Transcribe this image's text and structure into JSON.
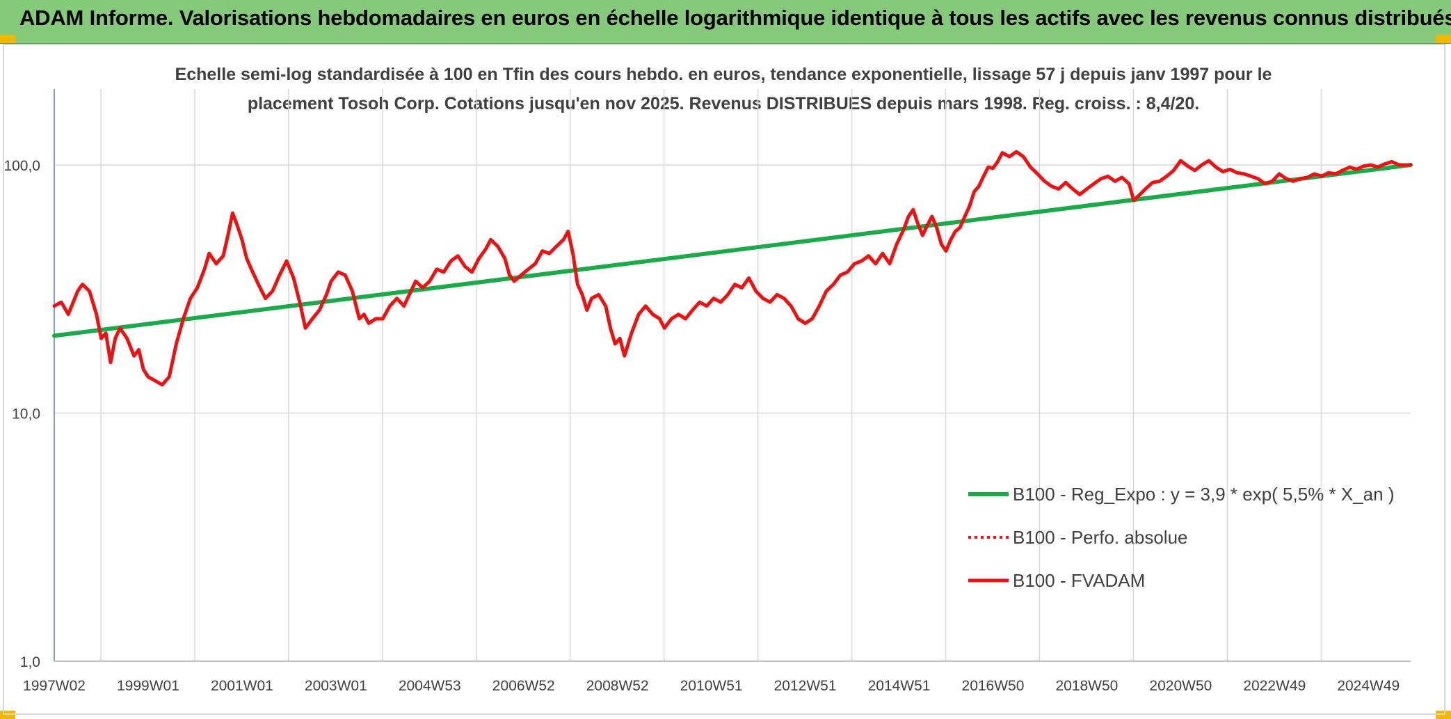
{
  "header": {
    "title": "ADAM Informe. Valorisations hebdomadaires en euros en échelle logarithmique identique à tous les actifs avec les revenus connus distribués"
  },
  "colors": {
    "header_bg": "#85c97a",
    "trend": "#1aaa4a",
    "series": "#ee1111",
    "grid": "#d9d9d9",
    "text": "#404040"
  },
  "chart_data": {
    "type": "line",
    "title_lines": [
      "Echelle semi-log standardisée à 100 en Tfin des cours hebdo. en euros, tendance exponentielle, lissage 57 j depuis janv 1997 pour le",
      "placement Tosoh Corp. Cotations jusqu'en nov 2025. Revenus DISTRIBUES depuis mars 1998. Reg. croiss. : 8,4/20."
    ],
    "y_scale": "log",
    "ylim": [
      1,
      100
    ],
    "y_ticks": [
      {
        "value": 1,
        "label": "1,0"
      },
      {
        "value": 10,
        "label": "10,0"
      },
      {
        "value": 100,
        "label": "100,0"
      }
    ],
    "xlim": [
      1997.0,
      2025.9
    ],
    "x_ticks": [
      {
        "x": 1997.0,
        "label": "1997W02"
      },
      {
        "x": 1999.0,
        "label": "1999W01"
      },
      {
        "x": 2001.0,
        "label": "2001W01"
      },
      {
        "x": 2003.0,
        "label": "2003W01"
      },
      {
        "x": 2005.0,
        "label": "2004W53"
      },
      {
        "x": 2007.0,
        "label": "2006W52"
      },
      {
        "x": 2009.0,
        "label": "2008W52"
      },
      {
        "x": 2011.0,
        "label": "2010W51"
      },
      {
        "x": 2013.0,
        "label": "2012W51"
      },
      {
        "x": 2015.0,
        "label": "2014W51"
      },
      {
        "x": 2017.0,
        "label": "2016W50"
      },
      {
        "x": 2019.0,
        "label": "2018W50"
      },
      {
        "x": 2021.0,
        "label": "2020W50"
      },
      {
        "x": 2023.0,
        "label": "2022W49"
      },
      {
        "x": 2025.0,
        "label": "2024W49"
      }
    ],
    "legend_position": "right",
    "series": [
      {
        "name": "B100 - Reg_Expo : y = 3,9 * exp( 5,5% *  X_an )",
        "style": "solid-green",
        "points": [
          [
            1997.0,
            20.5
          ],
          [
            2025.9,
            100.0
          ]
        ]
      },
      {
        "name": "B100 - Perfo. absolue",
        "style": "dotted-red",
        "points": []
      },
      {
        "name": "B100 - FVADAM",
        "style": "solid-red",
        "points": [
          [
            1997.0,
            27
          ],
          [
            1997.15,
            28
          ],
          [
            1997.3,
            25
          ],
          [
            1997.5,
            31
          ],
          [
            1997.6,
            33
          ],
          [
            1997.75,
            31
          ],
          [
            1997.9,
            25
          ],
          [
            1998.0,
            20
          ],
          [
            1998.1,
            21
          ],
          [
            1998.2,
            16
          ],
          [
            1998.3,
            20
          ],
          [
            1998.4,
            22
          ],
          [
            1998.55,
            20
          ],
          [
            1998.7,
            17
          ],
          [
            1998.8,
            18
          ],
          [
            1998.9,
            15
          ],
          [
            1999.0,
            14
          ],
          [
            1999.15,
            13.5
          ],
          [
            1999.3,
            13
          ],
          [
            1999.45,
            14
          ],
          [
            1999.6,
            19
          ],
          [
            1999.75,
            24
          ],
          [
            1999.9,
            29
          ],
          [
            2000.05,
            32
          ],
          [
            2000.2,
            38
          ],
          [
            2000.3,
            44
          ],
          [
            2000.45,
            40
          ],
          [
            2000.6,
            43
          ],
          [
            2000.7,
            52
          ],
          [
            2000.8,
            64
          ],
          [
            2000.9,
            57
          ],
          [
            2001.0,
            50
          ],
          [
            2001.1,
            42
          ],
          [
            2001.2,
            38
          ],
          [
            2001.35,
            33
          ],
          [
            2001.5,
            29
          ],
          [
            2001.65,
            31
          ],
          [
            2001.8,
            36
          ],
          [
            2001.95,
            41
          ],
          [
            2002.1,
            35
          ],
          [
            2002.25,
            27
          ],
          [
            2002.35,
            22
          ],
          [
            2002.5,
            24
          ],
          [
            2002.65,
            26
          ],
          [
            2002.8,
            30
          ],
          [
            2002.9,
            34
          ],
          [
            2003.05,
            37
          ],
          [
            2003.2,
            36
          ],
          [
            2003.35,
            31
          ],
          [
            2003.5,
            24
          ],
          [
            2003.6,
            25
          ],
          [
            2003.7,
            23
          ],
          [
            2003.85,
            24
          ],
          [
            2004.0,
            24
          ],
          [
            2004.15,
            27
          ],
          [
            2004.3,
            29
          ],
          [
            2004.45,
            27
          ],
          [
            2004.6,
            31
          ],
          [
            2004.7,
            34
          ],
          [
            2004.85,
            32
          ],
          [
            2005.0,
            34
          ],
          [
            2005.15,
            38
          ],
          [
            2005.3,
            37
          ],
          [
            2005.45,
            41
          ],
          [
            2005.6,
            43
          ],
          [
            2005.75,
            39
          ],
          [
            2005.9,
            37
          ],
          [
            2006.05,
            42
          ],
          [
            2006.2,
            46
          ],
          [
            2006.3,
            50
          ],
          [
            2006.45,
            47
          ],
          [
            2006.6,
            42
          ],
          [
            2006.7,
            36
          ],
          [
            2006.8,
            34
          ],
          [
            2006.95,
            36
          ],
          [
            2007.1,
            38
          ],
          [
            2007.25,
            40
          ],
          [
            2007.4,
            45
          ],
          [
            2007.55,
            44
          ],
          [
            2007.7,
            47
          ],
          [
            2007.85,
            50
          ],
          [
            2007.95,
            54
          ],
          [
            2008.05,
            44
          ],
          [
            2008.15,
            33
          ],
          [
            2008.25,
            30
          ],
          [
            2008.35,
            26
          ],
          [
            2008.45,
            29
          ],
          [
            2008.6,
            30
          ],
          [
            2008.75,
            27
          ],
          [
            2008.85,
            22
          ],
          [
            2008.95,
            19
          ],
          [
            2009.05,
            20
          ],
          [
            2009.15,
            17
          ],
          [
            2009.3,
            21
          ],
          [
            2009.45,
            25
          ],
          [
            2009.6,
            27
          ],
          [
            2009.75,
            25
          ],
          [
            2009.9,
            24
          ],
          [
            2010.0,
            22
          ],
          [
            2010.15,
            24
          ],
          [
            2010.3,
            25
          ],
          [
            2010.45,
            24
          ],
          [
            2010.6,
            26
          ],
          [
            2010.75,
            28
          ],
          [
            2010.9,
            27
          ],
          [
            2011.05,
            29
          ],
          [
            2011.2,
            28
          ],
          [
            2011.35,
            30
          ],
          [
            2011.5,
            33
          ],
          [
            2011.65,
            32
          ],
          [
            2011.8,
            35
          ],
          [
            2011.95,
            31
          ],
          [
            2012.1,
            29
          ],
          [
            2012.25,
            28
          ],
          [
            2012.4,
            30
          ],
          [
            2012.55,
            29
          ],
          [
            2012.7,
            27
          ],
          [
            2012.85,
            24
          ],
          [
            2013.0,
            23
          ],
          [
            2013.15,
            24
          ],
          [
            2013.3,
            27
          ],
          [
            2013.45,
            31
          ],
          [
            2013.6,
            33
          ],
          [
            2013.75,
            36
          ],
          [
            2013.9,
            37
          ],
          [
            2014.05,
            40
          ],
          [
            2014.2,
            41
          ],
          [
            2014.35,
            43
          ],
          [
            2014.5,
            40
          ],
          [
            2014.65,
            44
          ],
          [
            2014.8,
            40
          ],
          [
            2014.95,
            48
          ],
          [
            2015.1,
            55
          ],
          [
            2015.2,
            62
          ],
          [
            2015.3,
            66
          ],
          [
            2015.4,
            58
          ],
          [
            2015.5,
            52
          ],
          [
            2015.6,
            57
          ],
          [
            2015.7,
            62
          ],
          [
            2015.8,
            56
          ],
          [
            2015.9,
            48
          ],
          [
            2016.0,
            45
          ],
          [
            2016.1,
            50
          ],
          [
            2016.2,
            54
          ],
          [
            2016.3,
            56
          ],
          [
            2016.4,
            62
          ],
          [
            2016.5,
            68
          ],
          [
            2016.6,
            78
          ],
          [
            2016.7,
            82
          ],
          [
            2016.8,
            90
          ],
          [
            2016.9,
            98
          ],
          [
            2017.0,
            97
          ],
          [
            2017.1,
            103
          ],
          [
            2017.2,
            112
          ],
          [
            2017.35,
            108
          ],
          [
            2017.5,
            113
          ],
          [
            2017.65,
            108
          ],
          [
            2017.8,
            98
          ],
          [
            2017.95,
            92
          ],
          [
            2018.1,
            86
          ],
          [
            2018.25,
            82
          ],
          [
            2018.4,
            80
          ],
          [
            2018.55,
            85
          ],
          [
            2018.7,
            80
          ],
          [
            2018.85,
            76
          ],
          [
            2019.0,
            80
          ],
          [
            2019.15,
            84
          ],
          [
            2019.3,
            88
          ],
          [
            2019.45,
            90
          ],
          [
            2019.6,
            86
          ],
          [
            2019.75,
            89
          ],
          [
            2019.9,
            84
          ],
          [
            2020.0,
            72
          ],
          [
            2020.1,
            75
          ],
          [
            2020.25,
            80
          ],
          [
            2020.4,
            85
          ],
          [
            2020.55,
            86
          ],
          [
            2020.7,
            90
          ],
          [
            2020.85,
            95
          ],
          [
            2021.0,
            104
          ],
          [
            2021.15,
            99
          ],
          [
            2021.3,
            95
          ],
          [
            2021.45,
            100
          ],
          [
            2021.6,
            104
          ],
          [
            2021.75,
            98
          ],
          [
            2021.9,
            94
          ],
          [
            2022.05,
            96
          ],
          [
            2022.2,
            93
          ],
          [
            2022.35,
            92
          ],
          [
            2022.5,
            90
          ],
          [
            2022.65,
            88
          ],
          [
            2022.8,
            84
          ],
          [
            2022.95,
            86
          ],
          [
            2023.1,
            92
          ],
          [
            2023.25,
            88
          ],
          [
            2023.4,
            86
          ],
          [
            2023.55,
            88
          ],
          [
            2023.7,
            89
          ],
          [
            2023.85,
            92
          ],
          [
            2024.0,
            90
          ],
          [
            2024.15,
            93
          ],
          [
            2024.3,
            92
          ],
          [
            2024.45,
            95
          ],
          [
            2024.6,
            98
          ],
          [
            2024.75,
            96
          ],
          [
            2024.9,
            99
          ],
          [
            2025.05,
            100
          ],
          [
            2025.2,
            98
          ],
          [
            2025.35,
            101
          ],
          [
            2025.5,
            103
          ],
          [
            2025.65,
            100
          ],
          [
            2025.9,
            100
          ]
        ]
      }
    ]
  }
}
